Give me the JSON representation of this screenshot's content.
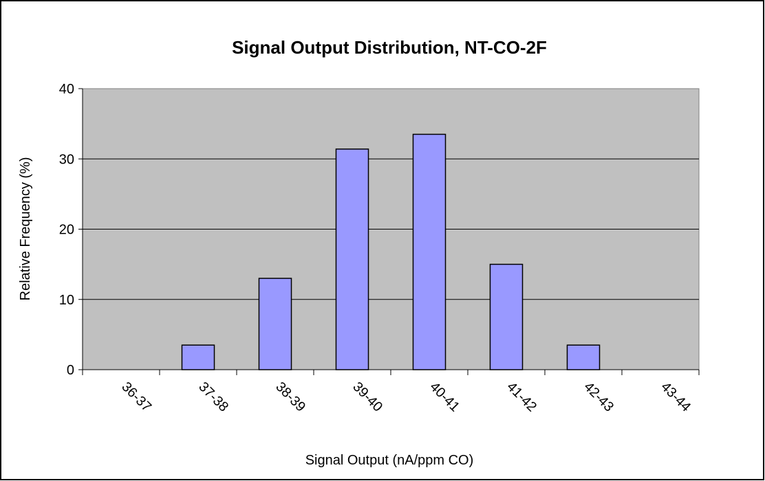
{
  "chart_data": {
    "type": "bar",
    "title": "Signal Output Distribution, NT-CO-2F",
    "x_label": "Signal Output (nA/ppm CO)",
    "y_label": "Relative Frequency (%)",
    "categories": [
      "36-37",
      "37-38",
      "38-39",
      "39-40",
      "40-41",
      "41-42",
      "42-43",
      "43-44"
    ],
    "values": [
      0,
      3.5,
      13,
      31.4,
      33.5,
      15,
      3.5,
      0
    ],
    "color": "#9999ff",
    "ylim": [
      0,
      40
    ],
    "yticks": [
      0,
      10,
      20,
      30,
      40
    ],
    "grid": true
  }
}
